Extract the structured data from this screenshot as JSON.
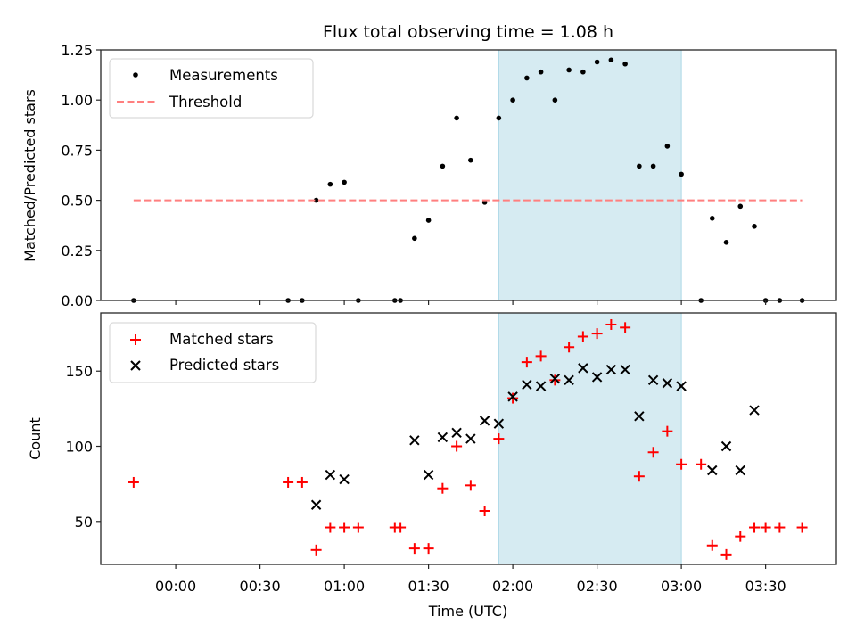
{
  "chart_data": [
    {
      "type": "scatter",
      "title": "Flux total observing time = 1.08 h",
      "xlabel": "",
      "ylabel": "Matched/Predicted stars",
      "x_unit": "minutes since 00:00 UTC",
      "xlim": [
        -26.7,
        235.2
      ],
      "ylim": [
        0,
        1.25
      ],
      "yticks": [
        0,
        0.25,
        0.5,
        0.75,
        1.0,
        1.25
      ],
      "ytick_labels": [
        "0.00",
        "0.25",
        "0.50",
        "0.75",
        "1.00",
        "1.25"
      ],
      "grid": false,
      "legend": {
        "placement": "top-left",
        "entries": [
          "Measurements",
          "Threshold"
        ]
      },
      "highlight_span": {
        "x_start": 115,
        "x_end": 180,
        "color": "#add8e6"
      },
      "series": [
        {
          "name": "Measurements",
          "kind": "scatter",
          "marker": "dot",
          "color": "#000000",
          "x": [
            -15,
            40,
            45,
            50,
            55,
            60,
            65,
            78,
            80,
            85,
            90,
            95,
            100,
            105,
            110,
            115,
            120,
            125,
            130,
            135,
            140,
            145,
            150,
            155,
            160,
            165,
            170,
            175,
            180,
            187,
            191,
            196,
            201,
            206,
            210,
            215,
            223
          ],
          "y": [
            0,
            0,
            0,
            0.5,
            0.58,
            0.59,
            0,
            0,
            0,
            0.31,
            0.4,
            0.67,
            0.91,
            0.7,
            0.49,
            0.91,
            1.0,
            1.11,
            1.14,
            1.0,
            1.15,
            1.14,
            1.19,
            1.2,
            1.18,
            0.67,
            0.67,
            0.77,
            0.63,
            0,
            0.41,
            0.29,
            0.47,
            0.37,
            0,
            0,
            0
          ]
        },
        {
          "name": "Threshold",
          "kind": "line",
          "style": "dashed",
          "color": "#ff7f7f",
          "x": [
            -15,
            223
          ],
          "y": [
            0.5,
            0.5
          ]
        }
      ]
    },
    {
      "type": "scatter",
      "title": "",
      "xlabel": "Time (UTC)",
      "ylabel": "Count",
      "x_unit": "minutes since 00:00 UTC",
      "xlim": [
        -26.7,
        235.2
      ],
      "ylim": [
        21.4,
        188.7
      ],
      "xticks": [
        0,
        30,
        60,
        90,
        120,
        150,
        180,
        210
      ],
      "xtick_labels": [
        "00:00",
        "00:30",
        "01:00",
        "01:30",
        "02:00",
        "02:30",
        "03:00",
        "03:30"
      ],
      "yticks": [
        50,
        100,
        150
      ],
      "ytick_labels": [
        "50",
        "100",
        "150"
      ],
      "grid": false,
      "legend": {
        "placement": "top-left",
        "entries": [
          "Matched stars",
          "Predicted stars"
        ]
      },
      "highlight_span": {
        "x_start": 115,
        "x_end": 180,
        "color": "#add8e6"
      },
      "series": [
        {
          "name": "Matched stars",
          "kind": "scatter",
          "marker": "plus",
          "color": "#ff0000",
          "x": [
            -15,
            40,
            45,
            50,
            55,
            60,
            65,
            78,
            80,
            85,
            90,
            95,
            100,
            105,
            110,
            115,
            120,
            125,
            130,
            135,
            140,
            145,
            150,
            155,
            160,
            165,
            170,
            175,
            180,
            187,
            191,
            196,
            201,
            206,
            210,
            215,
            223
          ],
          "y": [
            76,
            76,
            76,
            31,
            46,
            46,
            46,
            46,
            46,
            32,
            32,
            72,
            100,
            74,
            57,
            105,
            132,
            156,
            160,
            144,
            166,
            173,
            175,
            181,
            179,
            80,
            96,
            110,
            88,
            88,
            34,
            28,
            40,
            46,
            46,
            46,
            46
          ]
        },
        {
          "name": "Predicted stars",
          "kind": "scatter",
          "marker": "x",
          "color": "#000000",
          "x": [
            50,
            55,
            60,
            85,
            90,
            95,
            100,
            105,
            110,
            115,
            120,
            125,
            130,
            135,
            140,
            145,
            150,
            155,
            160,
            165,
            170,
            175,
            180,
            191,
            196,
            201,
            206
          ],
          "y": [
            61,
            81,
            78,
            104,
            81,
            106,
            109,
            105,
            117,
            115,
            133,
            141,
            140,
            145,
            144,
            152,
            146,
            151,
            151,
            120,
            144,
            142,
            140,
            84,
            100,
            84,
            124
          ]
        }
      ]
    }
  ]
}
